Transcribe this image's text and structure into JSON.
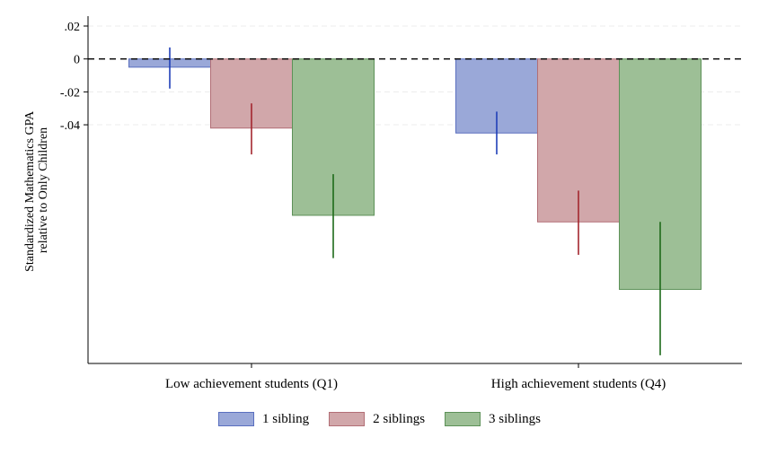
{
  "chart_data": {
    "type": "bar",
    "ylabel_lines": [
      "Standardized Mathematics GPA",
      "relative to Only Children"
    ],
    "categories": [
      "Low achievement students (Q1)",
      "High achievement students (Q4)"
    ],
    "yticks": [
      0.02,
      0,
      -0.02,
      -0.04
    ],
    "ytick_labels": [
      ".02",
      "0",
      "-.02",
      "-.04"
    ],
    "ylim": [
      -0.185,
      0.026
    ],
    "reference_line": 0,
    "grid": true,
    "legend_position": "bottom",
    "series": [
      {
        "name": "1 sibling",
        "values": [
          -0.005,
          -0.045
        ],
        "ci_low": [
          -0.018,
          -0.058
        ],
        "ci_high": [
          0.007,
          -0.032
        ],
        "fill": "#9aa8d8",
        "stroke": "#5a6fbf",
        "ci_color": "#1f3fb8"
      },
      {
        "name": "2 siblings",
        "values": [
          -0.042,
          -0.099
        ],
        "ci_low": [
          -0.058,
          -0.119
        ],
        "ci_high": [
          -0.027,
          -0.08
        ],
        "fill": "#d1a7aa",
        "stroke": "#b26f76",
        "ci_color": "#a3262e"
      },
      {
        "name": "3 siblings",
        "values": [
          -0.095,
          -0.14
        ],
        "ci_low": [
          -0.121,
          -0.18
        ],
        "ci_high": [
          -0.07,
          -0.099
        ],
        "fill": "#9dbf96",
        "stroke": "#5d9158",
        "ci_color": "#1e6a1a"
      }
    ]
  }
}
